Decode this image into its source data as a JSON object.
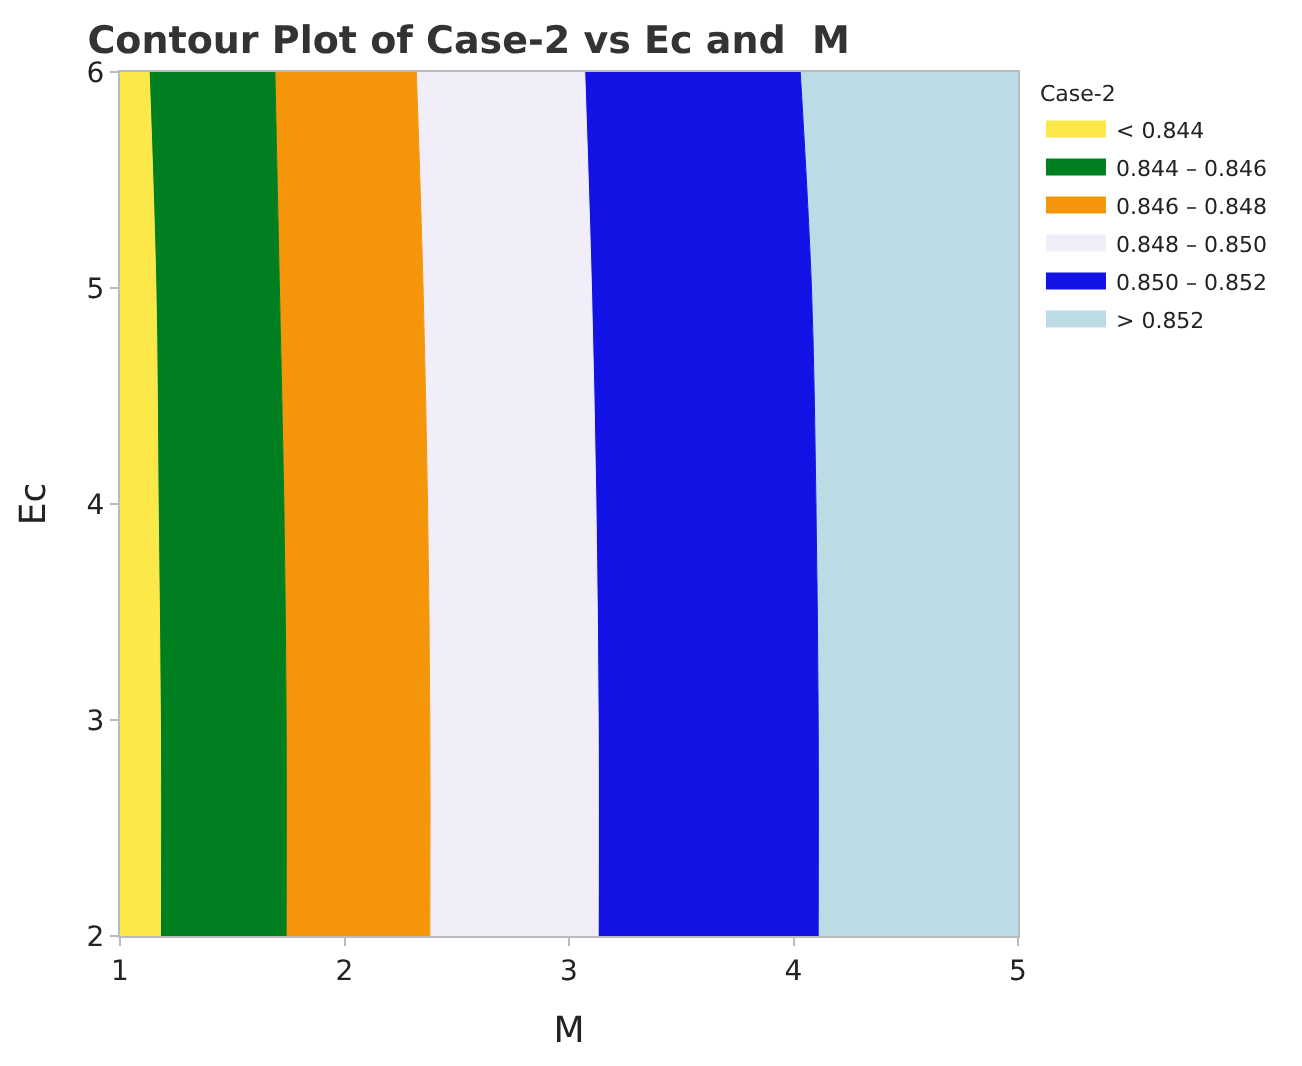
{
  "chart_data": {
    "type": "area",
    "orientation": "horizontal",
    "title": "Contour Plot of Case-2 vs Ec and  M",
    "xlabel": "M",
    "ylabel": "Ec",
    "legend_title": "Case-2",
    "x": [
      2,
      3,
      4,
      5,
      6
    ],
    "series": [
      {
        "name": "< 0.844",
        "color": "#fde84a",
        "values": [
          1.18,
          1.18,
          1.17,
          1.16,
          1.13
        ]
      },
      {
        "name": "0.844 – 0.846",
        "color": "#007f20",
        "values": [
          1.74,
          1.74,
          1.73,
          1.71,
          1.69
        ]
      },
      {
        "name": "0.846 – 0.848",
        "color": "#f5960a",
        "values": [
          2.38,
          2.38,
          2.37,
          2.35,
          2.32
        ]
      },
      {
        "name": "0.848 – 0.850",
        "color": "#f1eefa",
        "values": [
          3.13,
          3.13,
          3.12,
          3.1,
          3.07
        ]
      },
      {
        "name": "0.850 – 0.852",
        "color": "#1212e4",
        "values": [
          4.11,
          4.11,
          4.1,
          4.08,
          4.03
        ]
      },
      {
        "name": "> 0.852",
        "color": "#bddbe5",
        "values": [
          5,
          5,
          5,
          5,
          5
        ]
      }
    ],
    "xlim": [
      1,
      5
    ],
    "xticks": [
      1,
      2,
      3,
      4,
      5
    ],
    "ylim": [
      2,
      6
    ],
    "yticks": [
      2,
      3,
      4,
      5,
      6
    ],
    "legend": "top right"
  }
}
